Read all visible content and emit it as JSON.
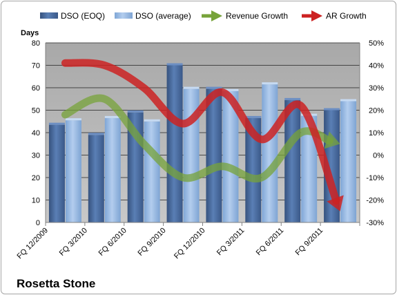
{
  "chart_data": {
    "type": "bar",
    "categories": [
      "FQ 12/2009",
      "FQ 3/2010",
      "FQ 6/2010",
      "FQ 9/2010",
      "FQ 12/2010",
      "FQ 3/2011",
      "FQ 6/2011",
      "FQ 9/2011"
    ],
    "series": [
      {
        "name": "DSO (EOQ)",
        "type": "bar",
        "axis": "left",
        "color": "#4a6fa5",
        "values": [
          43.5,
          39,
          49,
          70,
          59.5,
          46.5,
          54.5,
          50
        ]
      },
      {
        "name": "DSO (average)",
        "type": "bar",
        "axis": "left",
        "color": "#8eb4e3",
        "values": [
          45.5,
          46.5,
          45,
          59.5,
          58.5,
          61.5,
          47.5,
          54
        ]
      },
      {
        "name": "Revenue Growth",
        "type": "line",
        "axis": "right",
        "color": "#77a33a",
        "values": [
          18,
          25,
          5,
          -10,
          -5,
          -10,
          10,
          5
        ]
      },
      {
        "name": "AR Growth",
        "type": "line",
        "axis": "right",
        "color": "#cc2222",
        "values": [
          41,
          40,
          30,
          14,
          28,
          7,
          22,
          -25
        ]
      }
    ],
    "ylabel": "Days",
    "ylim": [
      0,
      80
    ],
    "yticks": [
      "0",
      "10",
      "20",
      "30",
      "40",
      "50",
      "60",
      "70",
      "80"
    ],
    "y2lim": [
      -30,
      50
    ],
    "y2ticks": [
      "-30%",
      "-20%",
      "-10%",
      "0%",
      "10%",
      "20%",
      "30%",
      "40%",
      "50%"
    ],
    "grid": true,
    "legend_position": "top",
    "brand": "Rosetta Stone"
  }
}
